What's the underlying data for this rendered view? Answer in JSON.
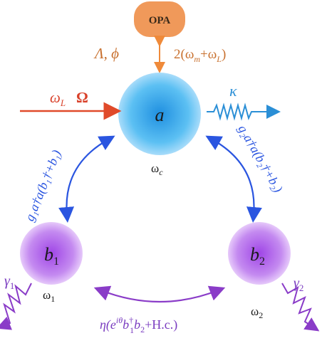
{
  "opa": {
    "label": "OPA",
    "color": "#f0995a"
  },
  "pump": {
    "left_params": "Λ, ϕ",
    "right_freq": "2(ω",
    "right_freq_sub1": "m",
    "right_freq_mid": "+ω",
    "right_freq_sub2": "L",
    "right_freq_end": ")",
    "color": "#d87a3a"
  },
  "cavity": {
    "symbol": "a",
    "freq": "ω",
    "freq_sub": "c",
    "color": "#2b9fe0"
  },
  "drive": {
    "omega": "ω",
    "omega_sub": "L",
    "Omega": "Ω",
    "color": "#e04a2a"
  },
  "decay": {
    "kappa": "κ",
    "color": "#2b8fd6"
  },
  "mech1": {
    "symbol": "b",
    "sub": "1",
    "freq": "ω",
    "freq_sub": "1",
    "gamma": "γ",
    "gamma_sub": "1",
    "color": "#a24fe0"
  },
  "mech2": {
    "symbol": "b",
    "sub": "2",
    "freq": "ω",
    "freq_sub": "2",
    "gamma": "γ",
    "gamma_sub": "2",
    "color": "#a24fe0"
  },
  "coupling1": {
    "text": "g₁a†a(b₁†+b₁)",
    "color": "#2a55e0"
  },
  "coupling2": {
    "text": "g₂a†a(b₂†+b₂)",
    "color": "#2a55e0"
  },
  "phonon_hop": {
    "text": "η(e^{iθ}b₁†b₂+H.c.)",
    "eta": "η(e",
    "exp": "iθ",
    "mid": "b",
    "mid_sup": "†",
    "mid_sub": "1",
    "b2": "b",
    "b2_sub": "2",
    "end": "+H.c.)",
    "color": "#7a3cc0"
  }
}
